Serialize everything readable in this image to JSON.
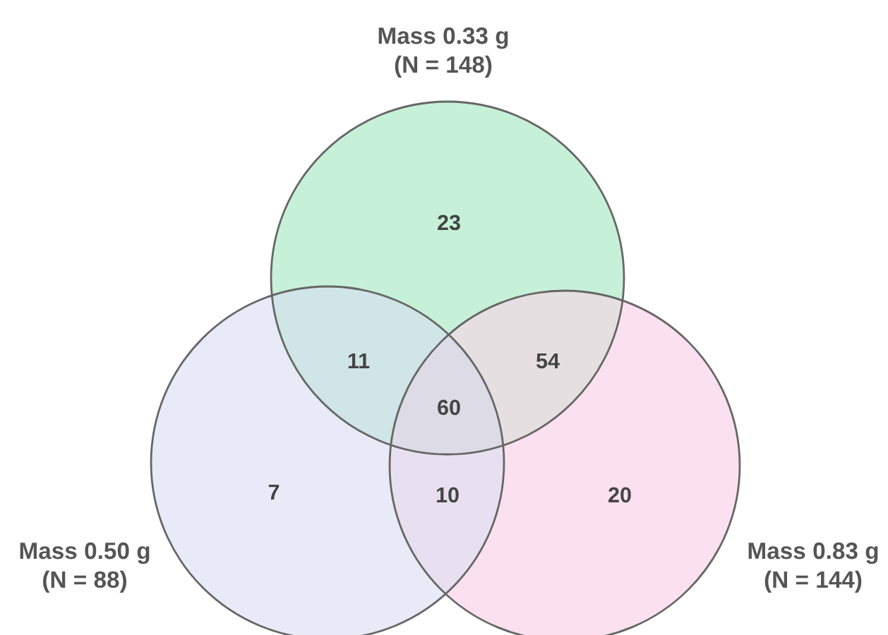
{
  "chart_data": {
    "type": "other",
    "categories": [
      null,
      null,
      null,
      null,
      null,
      null,
      null
    ],
    "values": [
      23,
      11,
      54,
      60,
      7,
      10,
      20
    ],
    "data_labels": true,
    "colors": [
      "#c6f1d8",
      "#d0e5e5",
      "#e6dfe2",
      "#dcdbe6",
      "#e8ebf7",
      "#e8e0f0",
      "#fbe1ef"
    ],
    "annotations": [
      "Mass 0.33 g\n(N = 148)",
      "Mass 0.50 g\n(N = 88)",
      "Mass 0.83 g\n(N = 144)"
    ]
  }
}
